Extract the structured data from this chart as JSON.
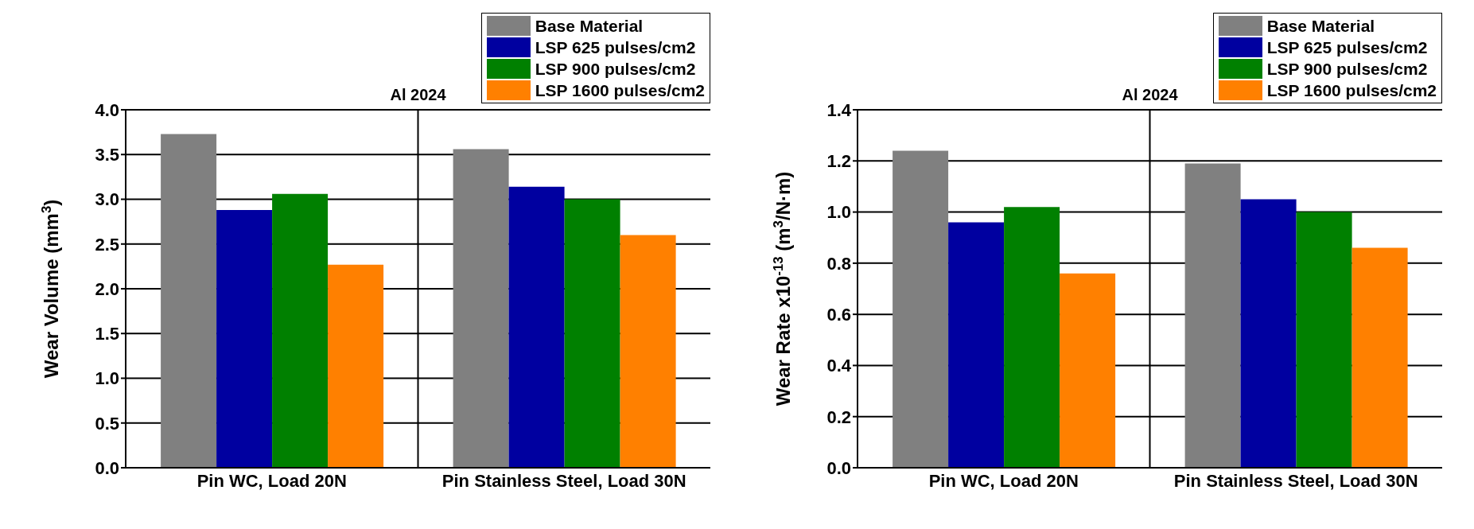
{
  "chart_data": [
    {
      "type": "bar",
      "title": "Al 2024",
      "ylabel": "Wear Volume (mm$^{3}$)",
      "categories": [
        "Pin WC, Load 20N",
        "Pin Stainless Steel, Load 30N"
      ],
      "series": [
        {
          "name": "Base Material",
          "color": "#808080",
          "values": [
            3.73,
            3.56
          ]
        },
        {
          "name": "LSP 625 pulses/cm2",
          "color": "#0000a0",
          "values": [
            2.88,
            3.14
          ]
        },
        {
          "name": "LSP 900 pulses/cm2",
          "color": "#008000",
          "values": [
            3.06,
            3.0
          ]
        },
        {
          "name": "LSP 1600 pulses/cm2",
          "color": "#ff8000",
          "values": [
            2.27,
            2.6
          ]
        }
      ],
      "ylim": [
        0,
        4
      ],
      "yticks": [
        {
          "value": 0,
          "label": "0.0"
        },
        0.5,
        {
          "value": 1,
          "label": "1.0"
        },
        1.5,
        {
          "value": 2,
          "label": "2.0"
        },
        2.5,
        {
          "value": 3,
          "label": "3.0"
        },
        3.5,
        {
          "value": 4,
          "label": "4.0"
        }
      ],
      "grid": true,
      "legend": "top right"
    },
    {
      "type": "bar",
      "title": "Al 2024",
      "ylabel": "Wear Rate x10$^{-13}$ (m$^{3}$/N·m)",
      "categories": [
        "Pin WC, Load 20N",
        "Pin Stainless Steel, Load 30N"
      ],
      "series": [
        {
          "name": "Base Material",
          "color": "#808080",
          "values": [
            1.24,
            1.19
          ]
        },
        {
          "name": "LSP 625 pulses/cm2",
          "color": "#0000a0",
          "values": [
            0.96,
            1.05
          ]
        },
        {
          "name": "LSP 900 pulses/cm2",
          "color": "#008000",
          "values": [
            1.02,
            1.0
          ]
        },
        {
          "name": "LSP 1600 pulses/cm2",
          "color": "#ff8000",
          "values": [
            0.76,
            0.86
          ]
        }
      ],
      "ylim": [
        0,
        1.4
      ],
      "yticks": [
        {
          "value": 0,
          "label": "0.0"
        },
        0.2,
        0.4,
        0.6,
        0.8,
        {
          "value": 1,
          "label": "1.0"
        },
        1.2,
        1.4
      ],
      "grid": true,
      "legend": "top right"
    }
  ]
}
